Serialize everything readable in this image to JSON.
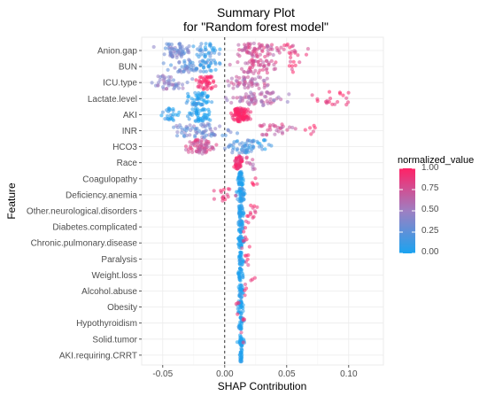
{
  "chart_data": {
    "type": "scatter",
    "title_line1": "Summary Plot",
    "title_line2": "for \"Random forest model\"",
    "xlabel": "SHAP Contribution",
    "ylabel": "Feature",
    "xlim": [
      -0.067,
      0.128
    ],
    "x_ticks": [
      -0.05,
      0.0,
      0.05,
      0.1
    ],
    "x_tick_labels": [
      "-0.05",
      "0.00",
      "0.05",
      "0.10"
    ],
    "zero_line": true,
    "grid": true,
    "legend": {
      "title": "normalized_value",
      "placement": "right",
      "ticks": [
        "1.00",
        "0.75",
        "0.50",
        "0.25",
        "0.00"
      ],
      "low_color": "#1aa3f0",
      "mid_color": "#9e7fc2",
      "high_color": "#ff2266"
    },
    "features": [
      "Anion.gap",
      "BUN",
      "ICU.type",
      "Lactate.level",
      "AKI",
      "INR",
      "HCO3",
      "Race",
      "Coagulopathy",
      "Deficiency.anemia",
      "Other.neurological.disorders",
      "Diabetes.complicated",
      "Chronic.pulmonary.disease",
      "Paralysis",
      "Weight.loss",
      "Alcohol.abuse",
      "Obesity",
      "Hypothyroidism",
      "Solid.tumor",
      "AKI.requiring.CRRT"
    ],
    "series": [
      {
        "feature": "Anion.gap",
        "clusters": [
          {
            "center": -0.04,
            "spread": 0.014,
            "values": 0.35,
            "n": 60
          },
          {
            "center": -0.015,
            "spread": 0.01,
            "values": 0.15,
            "n": 35
          },
          {
            "center": 0.025,
            "spread": 0.016,
            "values": 0.75,
            "n": 70
          },
          {
            "center": 0.055,
            "spread": 0.01,
            "values": 0.85,
            "n": 18
          }
        ]
      },
      {
        "feature": "BUN",
        "clusters": [
          {
            "center": -0.03,
            "spread": 0.014,
            "values": 0.3,
            "n": 50
          },
          {
            "center": -0.012,
            "spread": 0.008,
            "values": 0.1,
            "n": 25
          },
          {
            "center": 0.025,
            "spread": 0.015,
            "values": 0.75,
            "n": 55
          },
          {
            "center": 0.055,
            "spread": 0.006,
            "values": 0.9,
            "n": 8
          }
        ]
      },
      {
        "feature": "ICU.type",
        "clusters": [
          {
            "center": -0.045,
            "spread": 0.014,
            "values": 0.45,
            "n": 45
          },
          {
            "center": -0.015,
            "spread": 0.007,
            "values": 1.0,
            "n": 45
          },
          {
            "center": 0.018,
            "spread": 0.016,
            "values": 0.65,
            "n": 55
          }
        ]
      },
      {
        "feature": "Lactate.level",
        "clusters": [
          {
            "center": -0.022,
            "spread": 0.01,
            "values": 0.05,
            "n": 55
          },
          {
            "center": 0.025,
            "spread": 0.02,
            "values": 0.6,
            "n": 70
          },
          {
            "center": 0.085,
            "spread": 0.02,
            "values": 0.95,
            "n": 20
          }
        ]
      },
      {
        "feature": "AKI",
        "clusters": [
          {
            "center": -0.043,
            "spread": 0.008,
            "values": 0.05,
            "n": 25
          },
          {
            "center": -0.02,
            "spread": 0.009,
            "values": 0.0,
            "n": 50
          },
          {
            "center": 0.013,
            "spread": 0.006,
            "values": 1.0,
            "n": 110
          }
        ]
      },
      {
        "feature": "INR",
        "clusters": [
          {
            "center": -0.018,
            "spread": 0.02,
            "values": 0.35,
            "n": 70
          },
          {
            "center": 0.04,
            "spread": 0.015,
            "values": 0.75,
            "n": 30
          },
          {
            "center": 0.068,
            "spread": 0.005,
            "values": 0.95,
            "n": 6
          }
        ]
      },
      {
        "feature": "HCO3",
        "clusters": [
          {
            "center": -0.02,
            "spread": 0.01,
            "values": 0.75,
            "n": 70
          },
          {
            "center": 0.015,
            "spread": 0.012,
            "values": 0.2,
            "n": 50
          },
          {
            "center": 0.03,
            "spread": 0.006,
            "values": 0.1,
            "n": 12
          }
        ]
      },
      {
        "feature": "Race",
        "clusters": [
          {
            "center": 0.011,
            "spread": 0.003,
            "values": 0.95,
            "n": 50
          },
          {
            "center": 0.021,
            "spread": 0.006,
            "values": 0.7,
            "n": 10
          }
        ]
      },
      {
        "feature": "Coagulopathy",
        "clusters": [
          {
            "center": 0.013,
            "spread": 0.002,
            "values": 0.0,
            "n": 45
          },
          {
            "center": 0.025,
            "spread": 0.003,
            "values": 0.9,
            "n": 5
          }
        ]
      },
      {
        "feature": "Deficiency.anemia",
        "clusters": [
          {
            "center": 0.013,
            "spread": 0.003,
            "values": 0.05,
            "n": 45
          },
          {
            "center": 0.0,
            "spread": 0.007,
            "values": 0.95,
            "n": 15
          }
        ]
      },
      {
        "feature": "Other.neurological.disorders",
        "clusters": [
          {
            "center": 0.013,
            "spread": 0.002,
            "values": 0.0,
            "n": 35
          },
          {
            "center": 0.022,
            "spread": 0.005,
            "values": 0.95,
            "n": 12
          }
        ]
      },
      {
        "feature": "Diabetes.complicated",
        "clusters": [
          {
            "center": 0.013,
            "spread": 0.002,
            "values": 0.0,
            "n": 30
          },
          {
            "center": 0.017,
            "spread": 0.003,
            "values": 0.9,
            "n": 4
          }
        ]
      },
      {
        "feature": "Chronic.pulmonary.disease",
        "clusters": [
          {
            "center": 0.013,
            "spread": 0.002,
            "values": 0.0,
            "n": 32
          },
          {
            "center": 0.017,
            "spread": 0.003,
            "values": 0.9,
            "n": 6
          }
        ]
      },
      {
        "feature": "Paralysis",
        "clusters": [
          {
            "center": 0.013,
            "spread": 0.002,
            "values": 0.0,
            "n": 28
          },
          {
            "center": 0.018,
            "spread": 0.002,
            "values": 0.95,
            "n": 6
          }
        ]
      },
      {
        "feature": "Weight.loss",
        "clusters": [
          {
            "center": 0.013,
            "spread": 0.002,
            "values": 0.0,
            "n": 28
          },
          {
            "center": 0.022,
            "spread": 0.003,
            "values": 0.9,
            "n": 3
          }
        ]
      },
      {
        "feature": "Alcohol.abuse",
        "clusters": [
          {
            "center": 0.013,
            "spread": 0.002,
            "values": 0.0,
            "n": 28
          },
          {
            "center": 0.016,
            "spread": 0.003,
            "values": 0.9,
            "n": 4
          }
        ]
      },
      {
        "feature": "Obesity",
        "clusters": [
          {
            "center": 0.013,
            "spread": 0.002,
            "values": 0.0,
            "n": 28
          },
          {
            "center": 0.01,
            "spread": 0.003,
            "values": 0.85,
            "n": 4
          }
        ]
      },
      {
        "feature": "Hypothyroidism",
        "clusters": [
          {
            "center": 0.013,
            "spread": 0.002,
            "values": 0.0,
            "n": 26
          },
          {
            "center": 0.015,
            "spread": 0.002,
            "values": 0.9,
            "n": 3
          }
        ]
      },
      {
        "feature": "Solid.tumor",
        "clusters": [
          {
            "center": 0.013,
            "spread": 0.002,
            "values": 0.0,
            "n": 26
          },
          {
            "center": 0.014,
            "spread": 0.002,
            "values": 0.85,
            "n": 2
          }
        ]
      },
      {
        "feature": "AKI.requiring.CRRT",
        "clusters": [
          {
            "center": 0.013,
            "spread": 0.001,
            "values": 0.0,
            "n": 26
          }
        ]
      }
    ]
  }
}
